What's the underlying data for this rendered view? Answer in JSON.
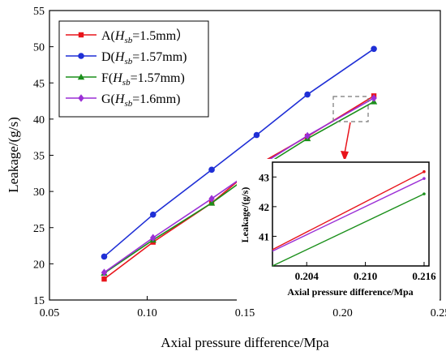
{
  "chart_data": [
    {
      "type": "line",
      "xlabel": "Axial pressure difference/Mpa",
      "ylabel": "Leakage/(g/s)",
      "xlim": [
        0.05,
        0.25
      ],
      "ylim": [
        15,
        55
      ],
      "xticks": [
        "0.05",
        "0.10",
        "0.15",
        "0.20",
        "0.25"
      ],
      "yticks": [
        "15",
        "20",
        "25",
        "30",
        "35",
        "40",
        "45",
        "50",
        "55"
      ],
      "legend_position": "top-left",
      "x": [
        0.078,
        0.103,
        0.133,
        0.156,
        0.182,
        0.216
      ],
      "series": [
        {
          "name_prefix": "A(",
          "name_sub": "sb",
          "name_suffix": "=1.5mm）",
          "color": "#e8141b",
          "marker": "square",
          "values": [
            17.9,
            23.0,
            28.4,
            33.6,
            37.6,
            43.2
          ]
        },
        {
          "name_prefix": "D(",
          "name_sub": "sb",
          "name_suffix": "=1.57mm)",
          "color": "#1f2fd6",
          "marker": "circle",
          "values": [
            21.0,
            26.8,
            33.0,
            37.8,
            43.4,
            49.7
          ]
        },
        {
          "name_prefix": "F(",
          "name_sub": "sb",
          "name_suffix": "=1.57mm)",
          "color": "#1a8f1a",
          "marker": "triangle",
          "values": [
            18.7,
            23.3,
            28.4,
            32.9,
            37.3,
            42.4
          ]
        },
        {
          "name_prefix": "G(",
          "name_sub": "sb",
          "name_suffix": "=1.6mm)",
          "color": "#9b2fd6",
          "marker": "diamond",
          "values": [
            18.8,
            23.6,
            29.0,
            33.3,
            37.7,
            42.9
          ]
        }
      ]
    },
    {
      "type": "line",
      "role": "inset-zoom",
      "xlabel": "Axial pressure difference/Mpa",
      "ylabel": "Leakage/(g/s)",
      "xlim": [
        0.2005,
        0.2165
      ],
      "ylim": [
        40.0,
        43.5
      ],
      "xticks": [
        "0.204",
        "0.210",
        "0.216"
      ],
      "yticks": [
        "41",
        "42",
        "43"
      ],
      "series": [
        {
          "color": "#e8141b",
          "x": [
            0.2005,
            0.216
          ],
          "values": [
            40.55,
            43.18
          ]
        },
        {
          "color": "#9b2fd6",
          "x": [
            0.2005,
            0.216
          ],
          "values": [
            40.5,
            42.95
          ]
        },
        {
          "color": "#1a8f1a",
          "x": [
            0.2005,
            0.216
          ],
          "values": [
            40.0,
            42.43
          ]
        }
      ]
    }
  ]
}
